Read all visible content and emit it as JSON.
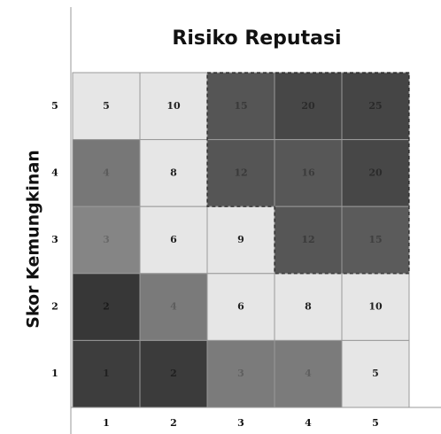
{
  "chart_data": {
    "type": "heatmap",
    "title": "Risiko Reputasi",
    "y_label": "Skor Kemungkinan",
    "xcategories": [
      1,
      2,
      3,
      4,
      5
    ],
    "ycategories": [
      5,
      4,
      3,
      2,
      1
    ],
    "z": [
      [
        5,
        10,
        15,
        20,
        25
      ],
      [
        4,
        8,
        12,
        16,
        20
      ],
      [
        3,
        6,
        9,
        12,
        15
      ],
      [
        2,
        4,
        6,
        8,
        10
      ],
      [
        1,
        2,
        3,
        4,
        5
      ]
    ],
    "colors": [
      [
        "#e6e6e6",
        "#e6e6e6",
        "#555555",
        "#474747",
        "#454545"
      ],
      [
        "#777777",
        "#e6e6e6",
        "#555555",
        "#575757",
        "#474747"
      ],
      [
        "#858585",
        "#e6e6e6",
        "#e6e6e6",
        "#565656",
        "#5b5b5b"
      ],
      [
        "#373737",
        "#7a7a7a",
        "#e6e6e6",
        "#e6e6e6",
        "#e6e6e6"
      ],
      [
        "#3d3d3d",
        "#3b3b3b",
        "#7b7b7b",
        "#7b7b7b",
        "#e6e6e6"
      ]
    ]
  }
}
